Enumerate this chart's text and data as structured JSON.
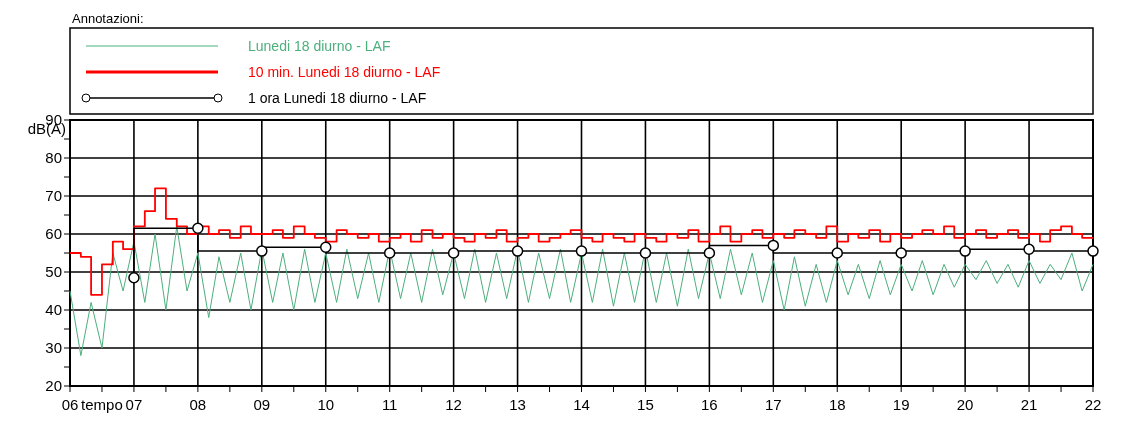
{
  "chart_data": {
    "type": "line",
    "xlabel": "tempo",
    "ylabel": "dB(A)",
    "legend_title": "Annotazioni:",
    "legend": "top",
    "grid": true,
    "xlim": [
      6,
      22
    ],
    "ylim": [
      20,
      90
    ],
    "xticks": [
      {
        "value": 6,
        "label": "06"
      },
      {
        "value": 6.5,
        "label": null
      },
      {
        "value": 7,
        "label": "07"
      },
      {
        "value": 7.5,
        "label": null
      },
      {
        "value": 8,
        "label": "08"
      },
      {
        "value": 8.5,
        "label": null
      },
      {
        "value": 9,
        "label": "09"
      },
      {
        "value": 9.5,
        "label": null
      },
      10,
      {
        "value": 10.5,
        "label": null
      },
      11,
      {
        "value": 11.5,
        "label": null
      },
      12,
      {
        "value": 12.5,
        "label": null
      },
      13,
      {
        "value": 13.5,
        "label": null
      },
      14,
      {
        "value": 14.5,
        "label": null
      },
      15,
      {
        "value": 15.5,
        "label": null
      },
      16,
      {
        "value": 16.5,
        "label": null
      },
      17,
      {
        "value": 17.5,
        "label": null
      },
      18,
      {
        "value": 18.5,
        "label": null
      },
      19,
      {
        "value": 19.5,
        "label": null
      },
      20,
      {
        "value": 20.5,
        "label": null
      },
      21,
      {
        "value": 21.5,
        "label": null
      },
      22
    ],
    "yticks": [
      20,
      {
        "value": 25,
        "label": null
      },
      30,
      {
        "value": 35,
        "label": null
      },
      40,
      {
        "value": 45,
        "label": null
      },
      50,
      {
        "value": 55,
        "label": null
      },
      60,
      {
        "value": 65,
        "label": null
      },
      70,
      {
        "value": 75,
        "label": null
      },
      80,
      {
        "value": 85,
        "label": null
      },
      90
    ],
    "x": [
      6,
      6.17,
      6.33,
      6.5,
      6.67,
      6.83,
      7,
      7.17,
      7.33,
      7.5,
      7.67,
      7.83,
      8,
      8.17,
      8.33,
      8.5,
      8.67,
      8.83,
      9,
      9.17,
      9.33,
      9.5,
      9.67,
      9.83,
      10,
      10.17,
      10.33,
      10.5,
      10.67,
      10.83,
      11,
      11.17,
      11.33,
      11.5,
      11.67,
      11.83,
      12,
      12.17,
      12.33,
      12.5,
      12.67,
      12.83,
      13,
      13.17,
      13.33,
      13.5,
      13.67,
      13.83,
      14,
      14.17,
      14.33,
      14.5,
      14.67,
      14.83,
      15,
      15.17,
      15.33,
      15.5,
      15.67,
      15.83,
      16,
      16.17,
      16.33,
      16.5,
      16.67,
      16.83,
      17,
      17.17,
      17.33,
      17.5,
      17.67,
      17.83,
      18,
      18.17,
      18.33,
      18.5,
      18.67,
      18.83,
      19,
      19.17,
      19.33,
      19.5,
      19.67,
      19.83,
      20,
      20.17,
      20.33,
      20.5,
      20.67,
      20.83,
      21,
      21.17,
      21.33,
      21.5,
      21.67,
      21.83,
      22
    ],
    "series": [
      {
        "name": "Lunedi 18 diurno - LAF",
        "color": "#4caf7d",
        "values": [
          45,
          28,
          42,
          30,
          55,
          45,
          58,
          42,
          60,
          40,
          62,
          45,
          55,
          38,
          54,
          42,
          55,
          40,
          56,
          42,
          55,
          40,
          56,
          42,
          55,
          42,
          56,
          43,
          55,
          42,
          56,
          43,
          55,
          42,
          56,
          44,
          55,
          43,
          56,
          42,
          55,
          43,
          56,
          42,
          55,
          43,
          56,
          42,
          55,
          42,
          56,
          41,
          55,
          42,
          56,
          42,
          55,
          41,
          56,
          43,
          55,
          43,
          56,
          44,
          55,
          42,
          53,
          40,
          54,
          41,
          52,
          42,
          53,
          44,
          52,
          43,
          53,
          44,
          52,
          45,
          53,
          44,
          52,
          46,
          52,
          48,
          53,
          47,
          52,
          46,
          53,
          47,
          52,
          48,
          55,
          45,
          52
        ]
      },
      {
        "name": "10 min. Lunedi 18 diurno - LAF",
        "type": "step",
        "color": "#ff0000",
        "values": [
          55,
          54,
          44,
          52,
          58,
          56,
          62,
          66,
          72,
          64,
          62,
          60,
          62,
          60,
          61,
          59,
          62,
          60,
          60,
          61,
          59,
          62,
          60,
          59,
          58,
          61,
          60,
          59,
          60,
          58,
          59,
          60,
          58,
          61,
          59,
          60,
          59,
          58,
          60,
          59,
          61,
          58,
          59,
          60,
          58,
          59,
          60,
          61,
          59,
          58,
          60,
          59,
          58,
          60,
          59,
          58,
          60,
          59,
          61,
          58,
          60,
          62,
          58,
          60,
          61,
          59,
          60,
          59,
          61,
          60,
          59,
          62,
          58,
          60,
          59,
          61,
          58,
          60,
          59,
          60,
          61,
          60,
          62,
          59,
          60,
          61,
          59,
          60,
          61,
          59,
          60,
          58,
          61,
          62,
          60,
          59,
          59
        ]
      },
      {
        "name": "1 ora Lunedi 18 diurno - LAF",
        "type": "step",
        "color": "#000000",
        "marker": "circle",
        "x": [
          7,
          8,
          9,
          10,
          11,
          12,
          13,
          14,
          15,
          16,
          17,
          18,
          19,
          20,
          21,
          22
        ],
        "values": [
          48.5,
          61.5,
          55.5,
          56.5,
          55,
          55,
          55.5,
          55.5,
          55,
          55,
          57,
          55,
          55,
          55.5,
          56,
          55.5
        ]
      }
    ]
  }
}
